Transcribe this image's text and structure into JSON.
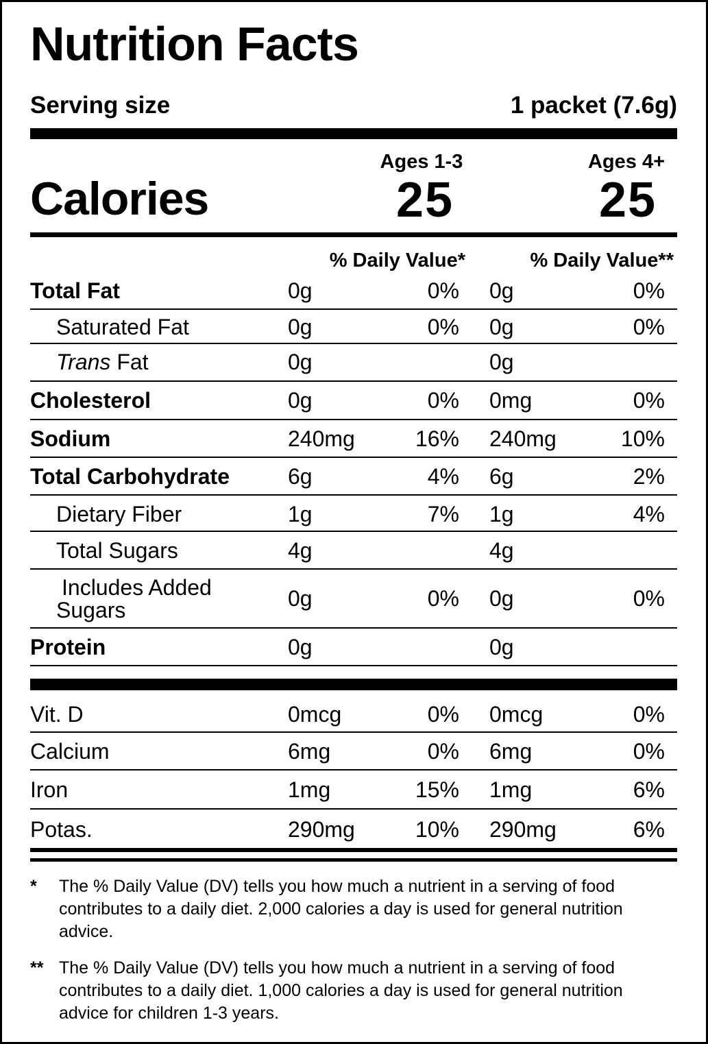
{
  "title": "Nutrition Facts",
  "serving": {
    "label": "Serving size",
    "value": "1 packet (7.6g)"
  },
  "calories": {
    "label": "Calories",
    "groups": [
      {
        "age": "Ages 1-3",
        "value": "25",
        "dv_header": "% Daily Value*"
      },
      {
        "age": "Ages 4+",
        "value": "25",
        "dv_header": "% Daily Value**"
      }
    ]
  },
  "nutrients": [
    {
      "name": "Total Fat",
      "amount1": "0g",
      "dv1": "0%",
      "amount2": "0g",
      "dv2": "0%"
    },
    {
      "name": "Saturated Fat",
      "amount1": "0g",
      "dv1": "0%",
      "amount2": "0g",
      "dv2": "0%"
    },
    {
      "name_italic": "Trans",
      "name_rest": " Fat",
      "amount1": "0g",
      "dv1": "",
      "amount2": "0g",
      "dv2": ""
    },
    {
      "name": "Cholesterol",
      "amount1": "0g",
      "dv1": "0%",
      "amount2": "0mg",
      "dv2": "0%"
    },
    {
      "name": "Sodium",
      "amount1": "240mg",
      "dv1": "16%",
      "amount2": "240mg",
      "dv2": "10%"
    },
    {
      "name": "Total Carbohydrate",
      "amount1": "6g",
      "dv1": "4%",
      "amount2": "6g",
      "dv2": "2%"
    },
    {
      "name": "Dietary Fiber",
      "amount1": "1g",
      "dv1": "7%",
      "amount2": "1g",
      "dv2": "4%"
    },
    {
      "name": "Total Sugars",
      "amount1": "4g",
      "dv1": "",
      "amount2": "4g",
      "dv2": ""
    },
    {
      "name_line1": "Includes Added",
      "name_line2": "Sugars",
      "amount1": "0g",
      "dv1": "0%",
      "amount2": "0g",
      "dv2": "0%"
    },
    {
      "name": "Protein",
      "amount1": "0g",
      "dv1": "",
      "amount2": "0g",
      "dv2": ""
    }
  ],
  "vitamins": [
    {
      "name": "Vit. D",
      "amount1": "0mcg",
      "dv1": "0%",
      "amount2": "0mcg",
      "dv2": "0%"
    },
    {
      "name": "Calcium",
      "amount1": "6mg",
      "dv1": "0%",
      "amount2": "6mg",
      "dv2": "0%"
    },
    {
      "name": "Iron",
      "amount1": "1mg",
      "dv1": "15%",
      "amount2": "1mg",
      "dv2": "6%"
    },
    {
      "name": "Potas.",
      "amount1": "290mg",
      "dv1": "10%",
      "amount2": "290mg",
      "dv2": "6%"
    }
  ],
  "footnotes": [
    {
      "mark": "*",
      "text": "The % Daily Value (DV) tells you how much a nutrient in a serving of food contributes to a daily diet. 2,000 calories a day is used for general nutrition advice."
    },
    {
      "mark": "**",
      "text": "The % Daily Value (DV) tells you how much a nutrient in a serving of food contributes to a daily diet. 1,000 calories a day is used for general nutrition advice for children 1-3 years."
    }
  ]
}
